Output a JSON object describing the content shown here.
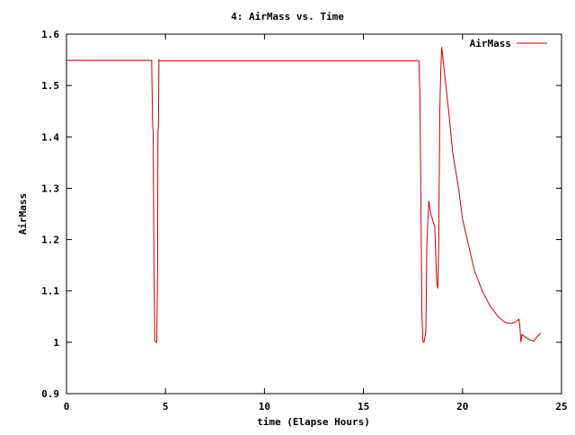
{
  "chart_data": {
    "type": "line",
    "title": "4: AirMass vs. Time",
    "xlabel": "time (Elapse Hours)",
    "ylabel": "AirMass",
    "xlim": [
      0,
      25
    ],
    "ylim": [
      0.9,
      1.6
    ],
    "xticks": [
      0,
      5,
      10,
      15,
      20,
      25
    ],
    "yticks": [
      0.9,
      1,
      1.1,
      1.2,
      1.3,
      1.4,
      1.5,
      1.6
    ],
    "xtick_labels": [
      "0",
      "5",
      "10",
      "15",
      "20",
      "25"
    ],
    "ytick_labels": [
      "0.9",
      "1",
      "1.1",
      "1.2",
      "1.3",
      "1.4",
      "1.5",
      "1.6"
    ],
    "grid": false,
    "legend_position": "top-right",
    "series_color": "#cc0000",
    "series": [
      {
        "name": "AirMass",
        "points": [
          [
            0,
            1.549
          ],
          [
            4.3,
            1.549
          ],
          [
            4.35,
            1.42
          ],
          [
            4.38,
            1.41
          ],
          [
            4.42,
            1.14
          ],
          [
            4.46,
            1.003
          ],
          [
            4.52,
            1.0
          ],
          [
            4.56,
            1.0
          ],
          [
            4.6,
            1.14
          ],
          [
            4.62,
            1.41
          ],
          [
            4.64,
            1.42
          ],
          [
            4.67,
            1.55
          ],
          [
            4.72,
            1.548
          ],
          [
            17.8,
            1.548
          ],
          [
            17.85,
            1.48
          ],
          [
            17.9,
            1.27
          ],
          [
            17.95,
            1.06
          ],
          [
            18.0,
            1.002
          ],
          [
            18.05,
            1.0
          ],
          [
            18.15,
            1.02
          ],
          [
            18.2,
            1.19
          ],
          [
            18.3,
            1.275
          ],
          [
            18.4,
            1.25
          ],
          [
            18.6,
            1.225
          ],
          [
            18.7,
            1.115
          ],
          [
            18.75,
            1.105
          ],
          [
            18.8,
            1.2
          ],
          [
            18.85,
            1.45
          ],
          [
            18.9,
            1.53
          ],
          [
            18.95,
            1.575
          ],
          [
            19.1,
            1.52
          ],
          [
            19.3,
            1.45
          ],
          [
            19.5,
            1.37
          ],
          [
            19.8,
            1.3
          ],
          [
            20.0,
            1.24
          ],
          [
            20.3,
            1.19
          ],
          [
            20.6,
            1.14
          ],
          [
            21.0,
            1.1
          ],
          [
            21.4,
            1.07
          ],
          [
            21.8,
            1.05
          ],
          [
            22.1,
            1.04
          ],
          [
            22.3,
            1.037
          ],
          [
            22.5,
            1.037
          ],
          [
            22.7,
            1.04
          ],
          [
            22.85,
            1.045
          ],
          [
            22.9,
            1.03
          ],
          [
            22.95,
            1.0
          ],
          [
            23.0,
            1.015
          ],
          [
            23.3,
            1.007
          ],
          [
            23.6,
            1.002
          ],
          [
            23.75,
            1.01
          ],
          [
            23.95,
            1.018
          ]
        ]
      }
    ]
  }
}
